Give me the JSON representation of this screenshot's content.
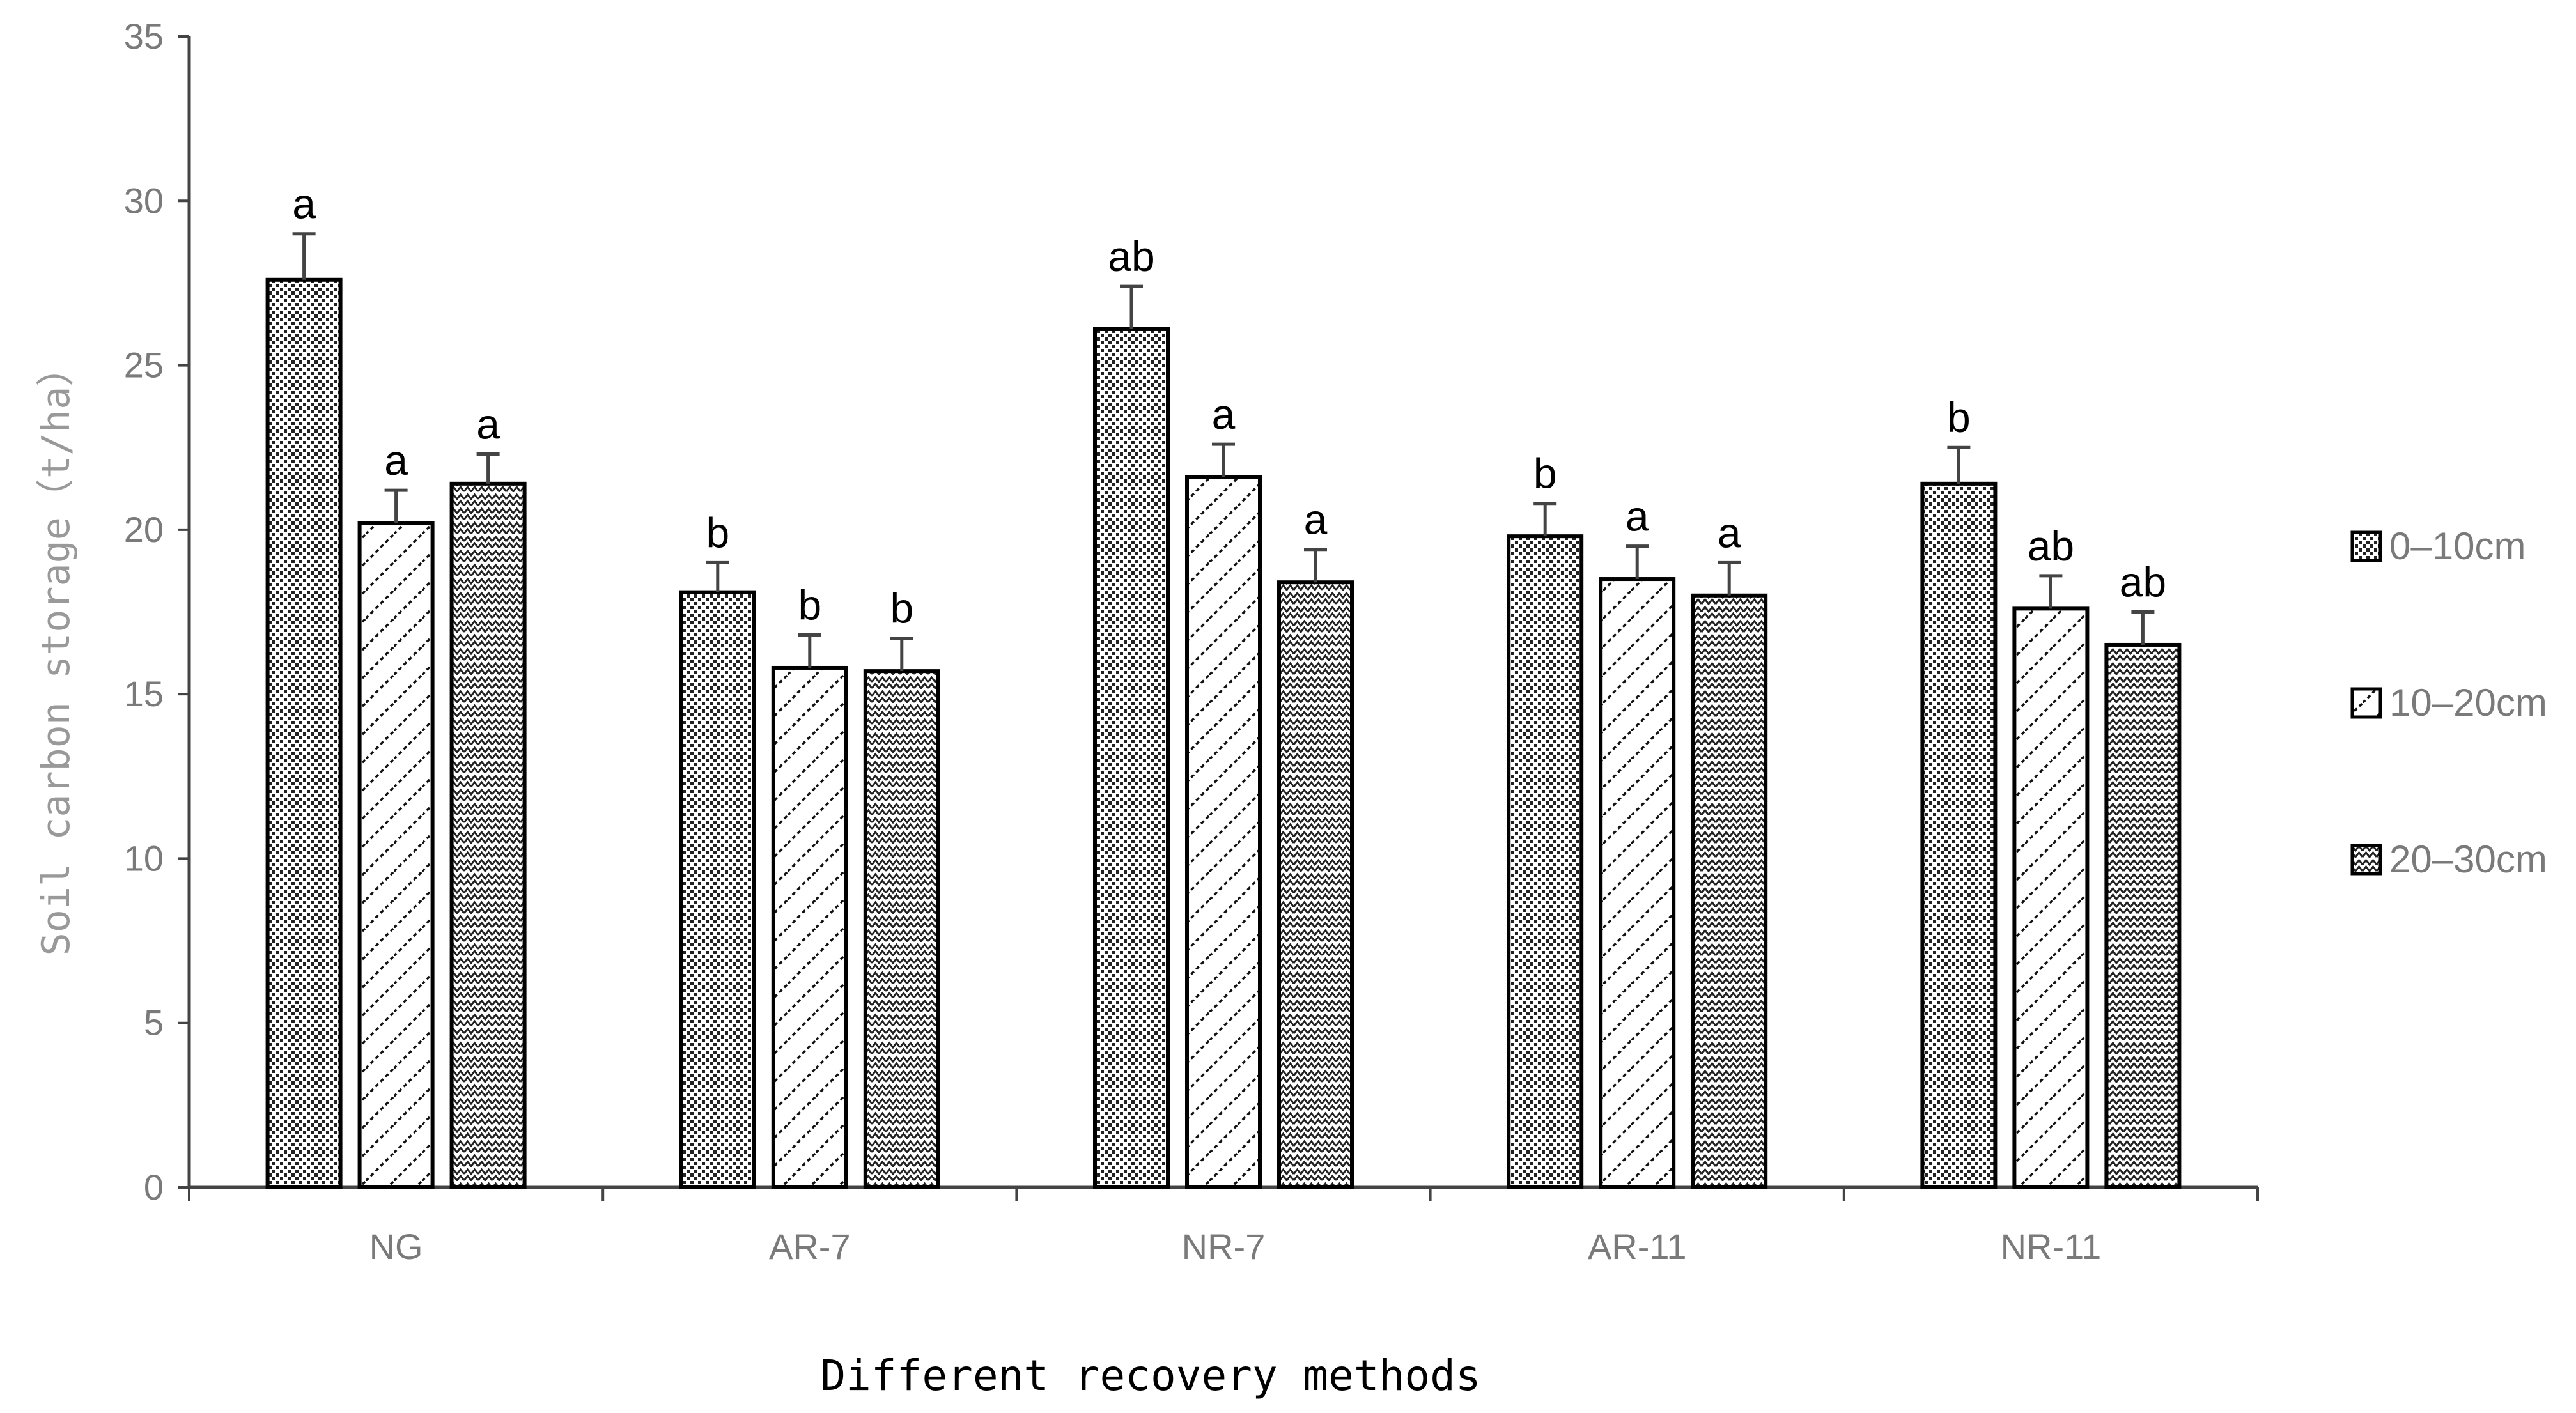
{
  "chart_data": {
    "type": "bar",
    "title": "",
    "xlabel": "Different recovery methods",
    "ylabel": "Soil carbon storage（t/ha）",
    "ylim": [
      0,
      35
    ],
    "yticks": [
      0,
      5,
      10,
      15,
      20,
      25,
      30,
      35
    ],
    "grid": false,
    "legend_position": "right",
    "categories": [
      "NG",
      "AR-7",
      "NR-7",
      "AR-11",
      "NR-11"
    ],
    "series": [
      {
        "name": "0–10cm",
        "pattern": "dots",
        "values": [
          27.6,
          18.1,
          26.1,
          19.8,
          21.4
        ],
        "errors": [
          1.4,
          0.9,
          1.3,
          1.0,
          1.1
        ],
        "labels": [
          "a",
          "b",
          "ab",
          "b",
          "b"
        ]
      },
      {
        "name": "10–20cm",
        "pattern": "diagonal",
        "values": [
          20.2,
          15.8,
          21.6,
          18.5,
          17.6
        ],
        "errors": [
          1.0,
          1.0,
          1.0,
          1.0,
          1.0
        ],
        "labels": [
          "a",
          "b",
          "a",
          "a",
          "ab"
        ]
      },
      {
        "name": "20–30cm",
        "pattern": "zigzag",
        "values": [
          21.4,
          15.7,
          18.4,
          18.0,
          16.5
        ],
        "errors": [
          0.9,
          1.0,
          1.0,
          1.0,
          1.0
        ],
        "labels": [
          "a",
          "b",
          "a",
          "a",
          "ab"
        ]
      }
    ]
  }
}
